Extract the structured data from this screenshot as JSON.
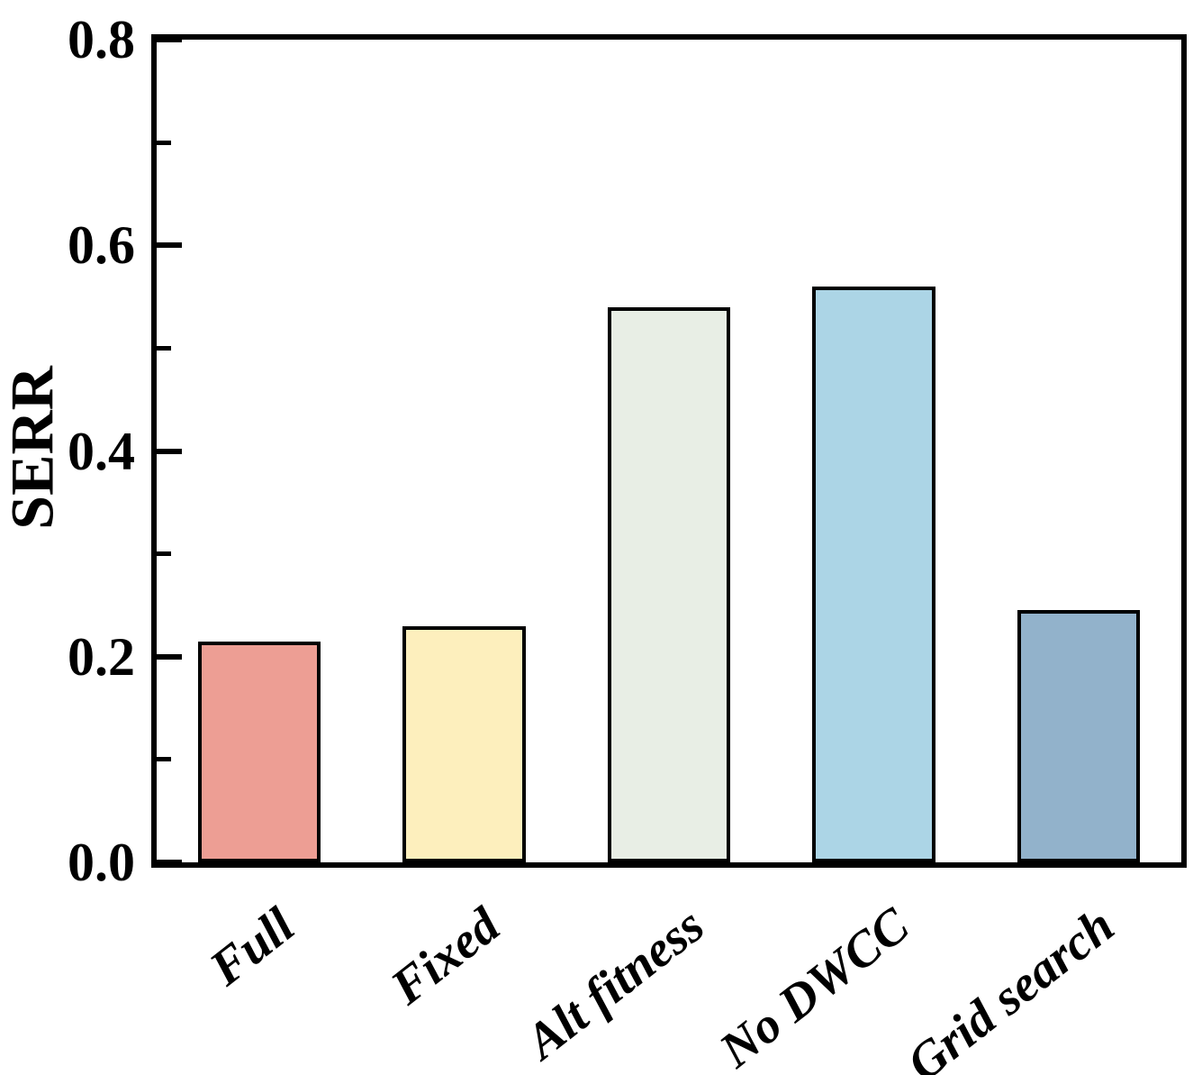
{
  "chart_data": {
    "type": "bar",
    "title": "",
    "xlabel": "",
    "ylabel": "SERR",
    "categories": [
      "Full",
      "Fixed",
      "Alt fitness",
      "No DWCC",
      "Grid search"
    ],
    "values": [
      0.215,
      0.23,
      0.54,
      0.56,
      0.245
    ],
    "bar_colors": [
      "#ED9E94",
      "#FDEFBD",
      "#E8EEE5",
      "#ACD5E6",
      "#92B2CB"
    ],
    "bar_edge_color": "#000000",
    "ylim": [
      0,
      0.8
    ],
    "y_major_ticks": [
      0.0,
      0.2,
      0.4,
      0.6,
      0.8
    ],
    "y_tick_labels": [
      "0.0",
      "0.2",
      "0.4",
      "0.6",
      "0.8"
    ],
    "y_minor_ticks": [
      0.1,
      0.3,
      0.5,
      0.7
    ],
    "x_tick_rotation_deg": -38,
    "grid": false,
    "legend": "none",
    "bar_width_fraction": 0.6
  }
}
